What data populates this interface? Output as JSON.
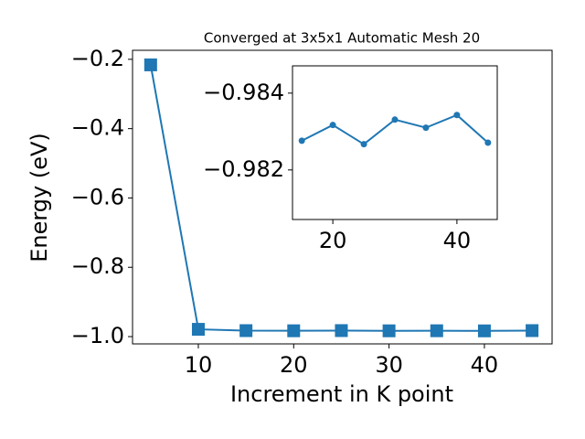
{
  "chart_data": [
    {
      "type": "line",
      "title": "Converged at 3x5x1 Automatic Mesh 20",
      "xlabel": "Increment in K point",
      "ylabel": "Energy (eV)",
      "x": [
        5,
        10,
        15,
        20,
        25,
        30,
        35,
        40,
        45
      ],
      "series": [
        {
          "color": "#1f77b4",
          "marker": "square",
          "values": [
            -0.216,
            -0.979,
            -0.98276,
            -0.98317,
            -0.98267,
            -0.98331,
            -0.9831,
            -0.98343,
            -0.98271
          ]
        }
      ],
      "xlim": [
        3.1,
        47.1
      ],
      "xticks": [
        10,
        20,
        30,
        40
      ],
      "ylim": [
        -1.021,
        -0.174
      ],
      "yticks": [
        {
          "value": -1.0,
          "label": "−1.0"
        },
        {
          "value": -0.8,
          "label": "−0.8"
        },
        {
          "value": -0.6,
          "label": "−0.6"
        },
        {
          "value": -0.4,
          "label": "−0.4"
        },
        {
          "value": -0.2,
          "label": "−0.2"
        }
      ]
    },
    {
      "type": "line",
      "x": [
        15,
        20,
        25,
        30,
        35,
        40,
        45
      ],
      "series": [
        {
          "color": "#1f77b4",
          "marker": "circle",
          "values": [
            -0.98276,
            -0.98317,
            -0.98267,
            -0.98331,
            -0.9831,
            -0.98343,
            -0.98271
          ]
        }
      ],
      "xlim": [
        13.5,
        46.5
      ],
      "xticks": [
        20,
        40
      ],
      "ylim": [
        -0.98071,
        -0.98471
      ],
      "yticks": [
        {
          "value": -0.984,
          "label": "−0.984"
        },
        {
          "value": -0.982,
          "label": "−0.982"
        }
      ]
    }
  ]
}
